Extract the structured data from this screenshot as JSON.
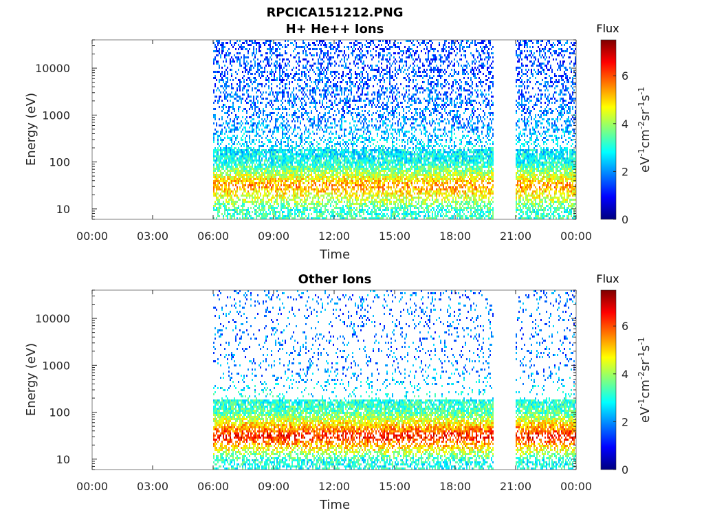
{
  "figure_title": "RPCICA151212.PNG",
  "colors": {
    "colormap": [
      "#00007f",
      "#0000ff",
      "#007fff",
      "#00ffff",
      "#7fff7f",
      "#ffff00",
      "#ff7f00",
      "#ff0000",
      "#7f0000"
    ],
    "axis": "#262626",
    "background": "#ffffff"
  },
  "colorbar": {
    "title": "Flux",
    "unit_label": "eV-1cm-2sr-1s-1",
    "range": [
      0,
      7.5
    ],
    "ticks": [
      "0",
      "2",
      "4",
      "6"
    ]
  },
  "chart_data": [
    {
      "type": "heatmap",
      "title": "H+ He++ Ions",
      "xlabel": "Time",
      "ylabel": "Energy (eV)",
      "x_ticks": [
        "00:00",
        "03:00",
        "06:00",
        "09:00",
        "12:00",
        "15:00",
        "18:00",
        "21:00",
        "00:00"
      ],
      "y_ticks": [
        "10",
        "100",
        "1000",
        "10000"
      ],
      "y_scale": "log",
      "xlim_hours": [
        0,
        24
      ],
      "ylim": [
        6,
        40000
      ],
      "data_intervals_hours": [
        [
          6.0,
          19.9
        ],
        [
          21.0,
          24.0
        ]
      ],
      "peak_band_eV": [
        25,
        40
      ],
      "peak_flux": 5.5,
      "summary_by_energy": [
        {
          "energy_eV": 10,
          "flux": 3.2
        },
        {
          "energy_eV": 32,
          "flux": 5.5
        },
        {
          "energy_eV": 100,
          "flux": 3.0
        },
        {
          "energy_eV": 1000,
          "flux": 1.8
        },
        {
          "energy_eV": 10000,
          "flux": 1.5
        }
      ]
    },
    {
      "type": "heatmap",
      "title": "Other Ions",
      "xlabel": "Time",
      "ylabel": "Energy (eV)",
      "x_ticks": [
        "00:00",
        "03:00",
        "06:00",
        "09:00",
        "12:00",
        "15:00",
        "18:00",
        "21:00",
        "00:00"
      ],
      "y_ticks": [
        "10",
        "100",
        "1000",
        "10000"
      ],
      "y_scale": "log",
      "xlim_hours": [
        0,
        24
      ],
      "ylim": [
        6,
        40000
      ],
      "data_intervals_hours": [
        [
          6.0,
          19.9
        ],
        [
          21.0,
          24.0
        ]
      ],
      "peak_band_eV": [
        22,
        45
      ],
      "peak_flux": 6.5,
      "summary_by_energy": [
        {
          "energy_eV": 10,
          "flux": 3.0
        },
        {
          "energy_eV": 32,
          "flux": 6.5
        },
        {
          "energy_eV": 100,
          "flux": 3.5
        },
        {
          "energy_eV": 1000,
          "flux": 1.8
        },
        {
          "energy_eV": 10000,
          "flux": 1.8
        }
      ]
    }
  ]
}
